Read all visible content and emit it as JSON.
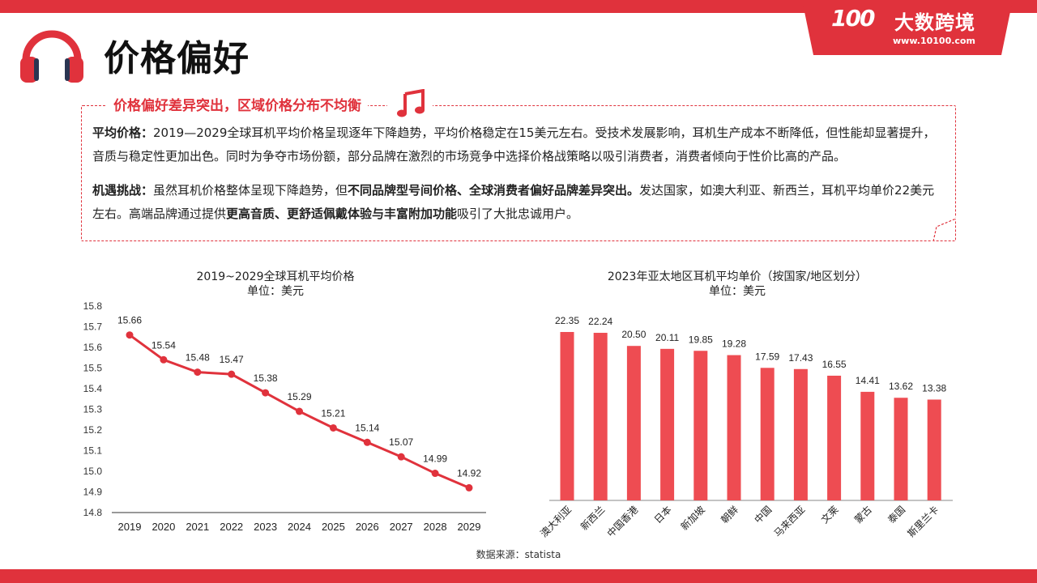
{
  "header": {
    "title": "价格偏好",
    "logo_num": "100",
    "logo_text": "大数跨境",
    "logo_url": "www.10100.com"
  },
  "box": {
    "heading": "价格偏好差异突出，区域价格分布不均衡",
    "p1_label": "平均价格：",
    "p1_text": "2019—2029全球耳机平均价格呈现逐年下降趋势，平均价格稳定在15美元左右。受技术发展影响，耳机生产成本不断降低，但性能却显著提升，音质与稳定性更加出色。同时为争夺市场份额，部分品牌在激烈的市场竞争中选择价格战策略以吸引消费者，消费者倾向于性价比高的产品。",
    "p2_label": "机遇挑战：",
    "p2_a": "虽然耳机价格整体呈现下降趋势，但",
    "p2_b": "不同品牌型号间价格、全球消费者偏好品牌差异突出。",
    "p2_c": "发达国家，如澳大利亚、新西兰，耳机平均单价22美元左右。高端品牌通过提供",
    "p2_d": "更高音质、更舒适佩戴体验与丰富附加功能",
    "p2_e": "吸引了大批忠诚用户。"
  },
  "source": "数据来源：statista",
  "colors": {
    "accent": "#e0323c",
    "line": "#e0323c",
    "bar": "#ee4c52"
  },
  "chart_data": [
    {
      "type": "line",
      "title": "2019~2029全球耳机平均价格",
      "subtitle": "单位：美元",
      "x": [
        "2019",
        "2020",
        "2021",
        "2022",
        "2023",
        "2024",
        "2025",
        "2026",
        "2027",
        "2028",
        "2029"
      ],
      "values": [
        15.66,
        15.54,
        15.48,
        15.47,
        15.38,
        15.29,
        15.21,
        15.14,
        15.07,
        14.99,
        14.92
      ],
      "labels": [
        "15.66",
        "15.54",
        "15.48",
        "15.47",
        "15.38",
        "15.29",
        "15.21",
        "15.14",
        "15.07",
        "14.99",
        "14.92"
      ],
      "ylim": [
        14.8,
        15.8
      ],
      "yticks": [
        "14.8",
        "14.9",
        "15.0",
        "15.1",
        "15.2",
        "15.3",
        "15.4",
        "15.5",
        "15.6",
        "15.7",
        "15.8"
      ],
      "grid": false
    },
    {
      "type": "bar",
      "title": "2023年亚太地区耳机平均单价（按国家/地区划分）",
      "subtitle": "单位：美元",
      "categories": [
        "澳大利亚",
        "新西兰",
        "中国香港",
        "日本",
        "新加坡",
        "朝鲜",
        "中国",
        "马来西亚",
        "文莱",
        "蒙古",
        "泰国",
        "斯里兰卡"
      ],
      "values": [
        22.35,
        22.24,
        20.5,
        20.11,
        19.85,
        19.28,
        17.59,
        17.43,
        16.55,
        14.41,
        13.62,
        13.38
      ],
      "labels": [
        "22.35",
        "22.24",
        "20.50",
        "20.11",
        "19.85",
        "19.28",
        "17.59",
        "17.43",
        "16.55",
        "14.41",
        "13.62",
        "13.38"
      ],
      "ylim": [
        0,
        25
      ],
      "grid": false
    }
  ]
}
